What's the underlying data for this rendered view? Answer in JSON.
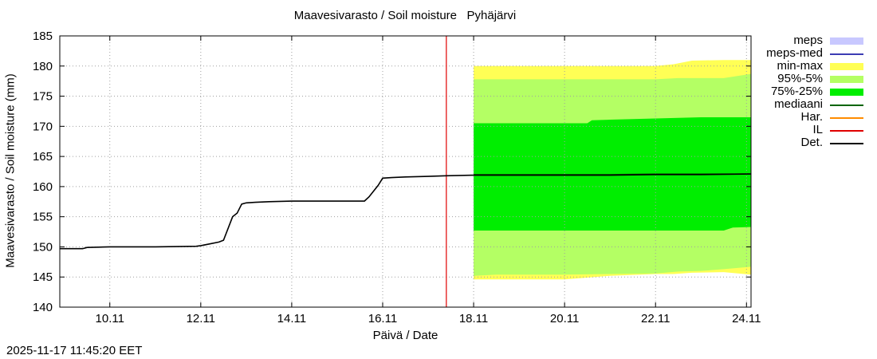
{
  "chart_data": {
    "type": "area",
    "title": "Maavesivarasto / Soil moisture   Pyhäjärvi",
    "xlabel": "Päivä / Date",
    "ylabel": "Maavesivarasto / Soil moisture (mm)",
    "timestamp": "2025-11-17 11:45:20 EET",
    "xlim": [
      8.9,
      24.1
    ],
    "ylim": [
      140,
      185
    ],
    "yticks": [
      140,
      145,
      150,
      155,
      160,
      165,
      170,
      175,
      180,
      185
    ],
    "xticks": [
      {
        "x": 10,
        "label": "10.11"
      },
      {
        "x": 12,
        "label": "12.11"
      },
      {
        "x": 14,
        "label": "14.11"
      },
      {
        "x": 16,
        "label": "16.11"
      },
      {
        "x": 18,
        "label": "18.11"
      },
      {
        "x": 20,
        "label": "20.11"
      },
      {
        "x": 22,
        "label": "22.11"
      },
      {
        "x": 24,
        "label": "24.11"
      }
    ],
    "grid": true,
    "vline": {
      "name": "IL",
      "x": 17.4,
      "color": "#e00000"
    },
    "bands": [
      {
        "name": "min-max",
        "color": "#ffff55",
        "x": [
          18.0,
          18.5,
          20.0,
          21.0,
          22.0,
          22.4,
          22.8,
          23.5,
          24.1
        ],
        "upper": [
          180.0,
          180.0,
          180.0,
          180.0,
          180.0,
          180.3,
          180.9,
          181.0,
          181.0
        ],
        "lower": [
          144.6,
          144.6,
          144.6,
          145.2,
          145.5,
          145.5,
          145.7,
          145.8,
          145.4
        ]
      },
      {
        "name": "95%-5%",
        "color": "#b4ff64",
        "x": [
          18.0,
          18.5,
          20.0,
          21.0,
          22.0,
          22.5,
          23.0,
          23.5,
          24.1
        ],
        "upper": [
          177.8,
          177.8,
          177.8,
          177.8,
          177.8,
          178.0,
          178.0,
          178.0,
          178.7
        ],
        "lower": [
          145.2,
          145.4,
          145.4,
          145.5,
          145.6,
          145.9,
          146.0,
          146.3,
          146.7
        ]
      },
      {
        "name": "75%-25%",
        "color": "#00ee00",
        "x": [
          18.0,
          19.0,
          20.5,
          20.6,
          21.0,
          22.0,
          23.0,
          23.5,
          23.7,
          24.1
        ],
        "upper": [
          170.5,
          170.5,
          170.5,
          171.0,
          171.1,
          171.3,
          171.5,
          171.5,
          171.5,
          171.5
        ],
        "lower": [
          152.7,
          152.7,
          152.7,
          152.7,
          152.7,
          152.7,
          152.7,
          152.7,
          153.2,
          153.3
        ]
      }
    ],
    "series": [
      {
        "name": "mediaani",
        "color": "#006400",
        "x": [
          18.0,
          19.0,
          20.0,
          21.0,
          22.0,
          23.0,
          24.1
        ],
        "values": [
          162.0,
          162.0,
          162.0,
          162.0,
          162.1,
          162.1,
          162.1
        ]
      },
      {
        "name": "Det.",
        "color": "#000000",
        "x": [
          8.9,
          9.4,
          9.5,
          10.0,
          11.0,
          11.9,
          12.0,
          12.2,
          12.4,
          12.5,
          12.7,
          12.8,
          12.9,
          13.0,
          13.2,
          13.5,
          14.0,
          15.0,
          15.6,
          15.7,
          15.9,
          16.0,
          16.2,
          16.5,
          17.0,
          17.4,
          18.0,
          19.0,
          20.0,
          21.0,
          22.0,
          23.0,
          24.1
        ],
        "values": [
          149.7,
          149.7,
          149.9,
          150.0,
          150.0,
          150.1,
          150.2,
          150.5,
          150.8,
          151.1,
          155.0,
          155.6,
          157.1,
          157.3,
          157.4,
          157.5,
          157.6,
          157.6,
          157.6,
          158.3,
          160.2,
          161.4,
          161.5,
          161.6,
          161.7,
          161.8,
          161.9,
          161.9,
          161.9,
          161.9,
          162.0,
          162.0,
          162.1
        ]
      }
    ]
  },
  "legend": [
    {
      "label": "meps",
      "kind": "box",
      "color": "#c8c8ff"
    },
    {
      "label": "meps-med",
      "kind": "line",
      "color": "#3c3cb4"
    },
    {
      "label": "min-max",
      "kind": "box",
      "color": "#ffff55"
    },
    {
      "label": "95%-5%",
      "kind": "box",
      "color": "#b4ff64"
    },
    {
      "label": "75%-25%",
      "kind": "box",
      "color": "#00ee00"
    },
    {
      "label": "mediaani",
      "kind": "line",
      "color": "#006400"
    },
    {
      "label": "Har.",
      "kind": "line",
      "color": "#ff8c00"
    },
    {
      "label": "IL",
      "kind": "line",
      "color": "#e00000"
    },
    {
      "label": "Det.",
      "kind": "line",
      "color": "#000000"
    }
  ]
}
